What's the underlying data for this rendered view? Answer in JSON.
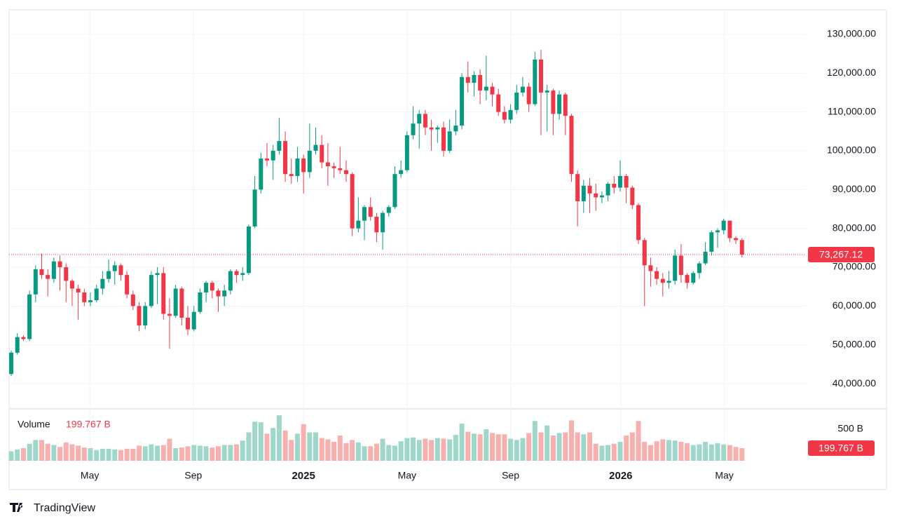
{
  "chart_data": {
    "type": "candlestick",
    "up_color": "#089981",
    "down_color": "#f23645",
    "open": [
      42500,
      48000,
      52000,
      51500,
      63000,
      69500,
      68000,
      67000,
      71500,
      70000,
      66500,
      64500,
      63500,
      61000,
      61500,
      64500,
      67000,
      69000,
      70500,
      68000,
      63000,
      60000,
      55000,
      60000,
      68000,
      68500,
      58000,
      57500,
      64500,
      57000,
      54000,
      58500,
      63500,
      66000,
      64000,
      62500,
      64000,
      69000,
      68000,
      68500,
      80500,
      90000,
      98000,
      97500,
      100000,
      102500,
      94000,
      93500,
      98000,
      94500,
      100000,
      101500,
      97000,
      96000,
      95500,
      95000,
      94000,
      80000,
      82000,
      85500,
      83000,
      79000,
      84000,
      85500,
      94000,
      95000,
      104000,
      107000,
      109500,
      106000,
      105500,
      106000,
      100000,
      105000,
      106500,
      119000,
      117500,
      119500,
      115500,
      116500,
      114500,
      110000,
      108000,
      110500,
      115000,
      116500,
      112000,
      123500,
      115000,
      115500,
      109500,
      114500,
      109000,
      94000,
      87000,
      91000,
      89000,
      88000,
      88500,
      91500,
      90500,
      93500,
      90500,
      86000,
      77000,
      70500,
      69000,
      67000,
      66000,
      66500,
      73000,
      68000,
      66000,
      68500,
      71000,
      74000,
      79000,
      79500,
      82000,
      77500,
      77000
    ],
    "high": [
      48500,
      53000,
      52500,
      64000,
      70500,
      73500,
      69500,
      72500,
      73000,
      71000,
      67000,
      65500,
      64500,
      63500,
      65500,
      69000,
      72000,
      71500,
      71000,
      69000,
      64000,
      61000,
      61000,
      69000,
      70000,
      70000,
      62000,
      65500,
      65000,
      60000,
      60000,
      64500,
      66500,
      66500,
      64500,
      65500,
      69500,
      69500,
      70000,
      81000,
      93500,
      99500,
      102000,
      101500,
      108500,
      105000,
      98000,
      101000,
      99000,
      107000,
      106000,
      104000,
      102000,
      97000,
      101000,
      97500,
      94500,
      88000,
      86000,
      88000,
      84000,
      84500,
      86000,
      96000,
      97500,
      105000,
      111500,
      110500,
      110500,
      108000,
      106500,
      107500,
      108000,
      110500,
      120000,
      123000,
      120500,
      121000,
      124500,
      117500,
      116000,
      111500,
      112000,
      117000,
      119000,
      117500,
      125500,
      126000,
      117000,
      116000,
      115500,
      115000,
      109500,
      95000,
      92500,
      93000,
      91500,
      89500,
      92000,
      93500,
      97500,
      94000,
      91000,
      86500,
      77500,
      72500,
      70000,
      68500,
      69000,
      74500,
      76000,
      68500,
      69000,
      71500,
      76500,
      79500,
      80000,
      82500,
      82000,
      78000,
      77500
    ],
    "low": [
      42000,
      47500,
      51000,
      51000,
      61000,
      67000,
      62500,
      66000,
      64000,
      61000,
      60000,
      56500,
      60000,
      60000,
      61000,
      63000,
      66000,
      65500,
      66500,
      62000,
      59000,
      53500,
      54000,
      59500,
      60500,
      56500,
      49000,
      57000,
      55000,
      52500,
      53500,
      58000,
      61000,
      62000,
      58500,
      60000,
      63000,
      66000,
      66500,
      68000,
      80000,
      89000,
      96000,
      92500,
      99000,
      92000,
      91500,
      92000,
      89000,
      93000,
      99000,
      95500,
      91000,
      93000,
      94000,
      92000,
      78000,
      79000,
      77000,
      82000,
      76500,
      74500,
      83000,
      85000,
      93000,
      94500,
      103000,
      100500,
      104000,
      100000,
      102000,
      98500,
      99500,
      104000,
      105500,
      115000,
      114000,
      112000,
      113000,
      111500,
      109000,
      107000,
      107000,
      109500,
      114000,
      110000,
      111500,
      104000,
      105000,
      104000,
      108000,
      104000,
      92000,
      80500,
      84000,
      84000,
      84500,
      86500,
      87000,
      89000,
      89500,
      86500,
      85000,
      76000,
      60000,
      65000,
      65500,
      62500,
      64500,
      65500,
      66000,
      64500,
      65500,
      67000,
      70500,
      73000,
      75000,
      78500,
      76500,
      76000,
      72500
    ],
    "close": [
      48000,
      52000,
      51500,
      63000,
      69500,
      68000,
      67000,
      71500,
      70000,
      66500,
      64500,
      63500,
      61000,
      61500,
      64500,
      67000,
      69000,
      70500,
      68000,
      63000,
      60000,
      55000,
      60000,
      68000,
      68500,
      58000,
      57500,
      64500,
      57000,
      54000,
      58500,
      63500,
      66000,
      64000,
      62500,
      64000,
      69000,
      68000,
      68500,
      80500,
      90000,
      98000,
      97500,
      100000,
      102500,
      94000,
      93500,
      98000,
      94500,
      100000,
      101500,
      97000,
      96000,
      95500,
      95000,
      94000,
      80000,
      82000,
      85500,
      83000,
      79000,
      84000,
      85500,
      94000,
      95000,
      104000,
      107000,
      109500,
      106000,
      105500,
      106000,
      100000,
      105000,
      106500,
      119000,
      117500,
      119500,
      115500,
      116500,
      114500,
      110000,
      108000,
      110500,
      115000,
      116500,
      112000,
      123500,
      115000,
      115500,
      109500,
      114500,
      109000,
      94000,
      87000,
      91000,
      89000,
      88000,
      88500,
      91500,
      90500,
      93500,
      90500,
      86000,
      77000,
      70500,
      69000,
      67000,
      66000,
      66500,
      73000,
      68000,
      66000,
      68500,
      71000,
      74000,
      79000,
      79500,
      82000,
      77500,
      77000,
      73267.12
    ],
    "close_label": "73,267.12",
    "ylim": [
      33700,
      136300
    ],
    "yticks": [
      {
        "value": 40000,
        "label": "40,000.00"
      },
      {
        "value": 50000,
        "label": "50,000.00"
      },
      {
        "value": 60000,
        "label": "60,000.00"
      },
      {
        "value": 70000,
        "label": "70,000.00"
      },
      {
        "value": 80000,
        "label": "80,000.00"
      },
      {
        "value": 90000,
        "label": "90,000.00"
      },
      {
        "value": 100000,
        "label": "100,000.00"
      },
      {
        "value": 110000,
        "label": "110,000.00"
      },
      {
        "value": 120000,
        "label": "120,000.00"
      },
      {
        "value": 130000,
        "label": "130,000.00"
      }
    ],
    "xlim": [
      -0.35,
      130.5
    ],
    "xticks": [
      {
        "value": 12.9,
        "label": "May"
      },
      {
        "value": 29.9,
        "label": "Sep"
      },
      {
        "value": 48,
        "label": "2025"
      },
      {
        "value": 65,
        "label": "May"
      },
      {
        "value": 82,
        "label": "Sep"
      },
      {
        "value": 100.1,
        "label": "2026"
      },
      {
        "value": 117.1,
        "label": "May"
      }
    ],
    "grid": true,
    "volume": {
      "title": "Volume",
      "up_color": "#9fd8cb",
      "down_color": "#f8b0ae",
      "values": [
        150,
        180,
        200,
        270,
        330,
        330,
        270,
        250,
        220,
        290,
        260,
        240,
        210,
        200,
        170,
        190,
        190,
        180,
        170,
        190,
        190,
        240,
        230,
        260,
        240,
        250,
        350,
        200,
        210,
        230,
        250,
        240,
        230,
        210,
        230,
        250,
        250,
        260,
        320,
        450,
        620,
        610,
        430,
        520,
        720,
        480,
        330,
        430,
        580,
        450,
        450,
        360,
        340,
        300,
        400,
        280,
        330,
        290,
        230,
        230,
        270,
        350,
        250,
        240,
        310,
        360,
        370,
        330,
        350,
        330,
        360,
        350,
        340,
        410,
        590,
        460,
        430,
        420,
        500,
        440,
        420,
        420,
        350,
        330,
        360,
        440,
        630,
        450,
        560,
        400,
        440,
        450,
        640,
        450,
        420,
        450,
        270,
        240,
        250,
        270,
        300,
        400,
        450,
        630,
        300,
        250,
        310,
        340,
        330,
        320,
        300,
        280,
        250,
        260,
        300,
        260,
        280,
        260,
        250,
        220,
        199.767
      ],
      "last_label": "199.767 B",
      "ylim": [
        0,
        760
      ],
      "yticks": [
        {
          "value": 500,
          "label": "500 B"
        }
      ]
    }
  },
  "brand": "TradingView"
}
